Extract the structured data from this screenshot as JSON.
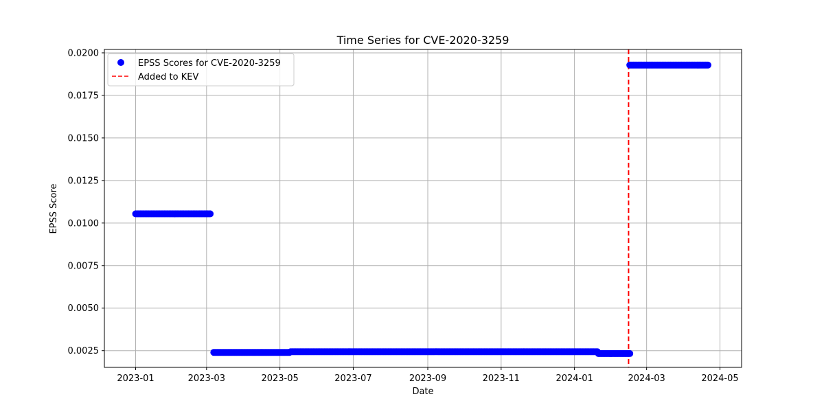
{
  "chart_data": {
    "type": "scatter",
    "title": "Time Series for CVE-2020-3259",
    "xlabel": "Date",
    "ylabel": "EPSS Score",
    "xlim": [
      "2022-12-06",
      "2024-05-19"
    ],
    "ylim": [
      0.00152,
      0.0202
    ],
    "x_ticks": [
      "2023-01",
      "2023-03",
      "2023-05",
      "2023-07",
      "2023-09",
      "2023-11",
      "2024-01",
      "2024-03",
      "2024-05"
    ],
    "y_ticks": [
      "0.0025",
      "0.0050",
      "0.0075",
      "0.0100",
      "0.0125",
      "0.0150",
      "0.0175",
      "0.0200"
    ],
    "grid": true,
    "legend_position": "top-left",
    "series": [
      {
        "name": "EPSS Scores for CVE-2020-3259",
        "color": "#0000ff",
        "marker": "circle",
        "segments": [
          {
            "start": "2023-01-01",
            "end": "2023-03-04",
            "value": 0.01054
          },
          {
            "start": "2023-03-07",
            "end": "2023-05-09",
            "value": 0.0024
          },
          {
            "start": "2023-05-10",
            "end": "2024-01-20",
            "value": 0.00244
          },
          {
            "start": "2024-01-21",
            "end": "2024-02-16",
            "value": 0.00233
          },
          {
            "start": "2024-02-16",
            "end": "2024-04-21",
            "value": 0.01928
          }
        ]
      }
    ],
    "annotations": [
      {
        "type": "vline",
        "label": "Added to KEV",
        "date": "2024-02-15",
        "color": "#ff0000",
        "style": "dashed"
      }
    ]
  }
}
